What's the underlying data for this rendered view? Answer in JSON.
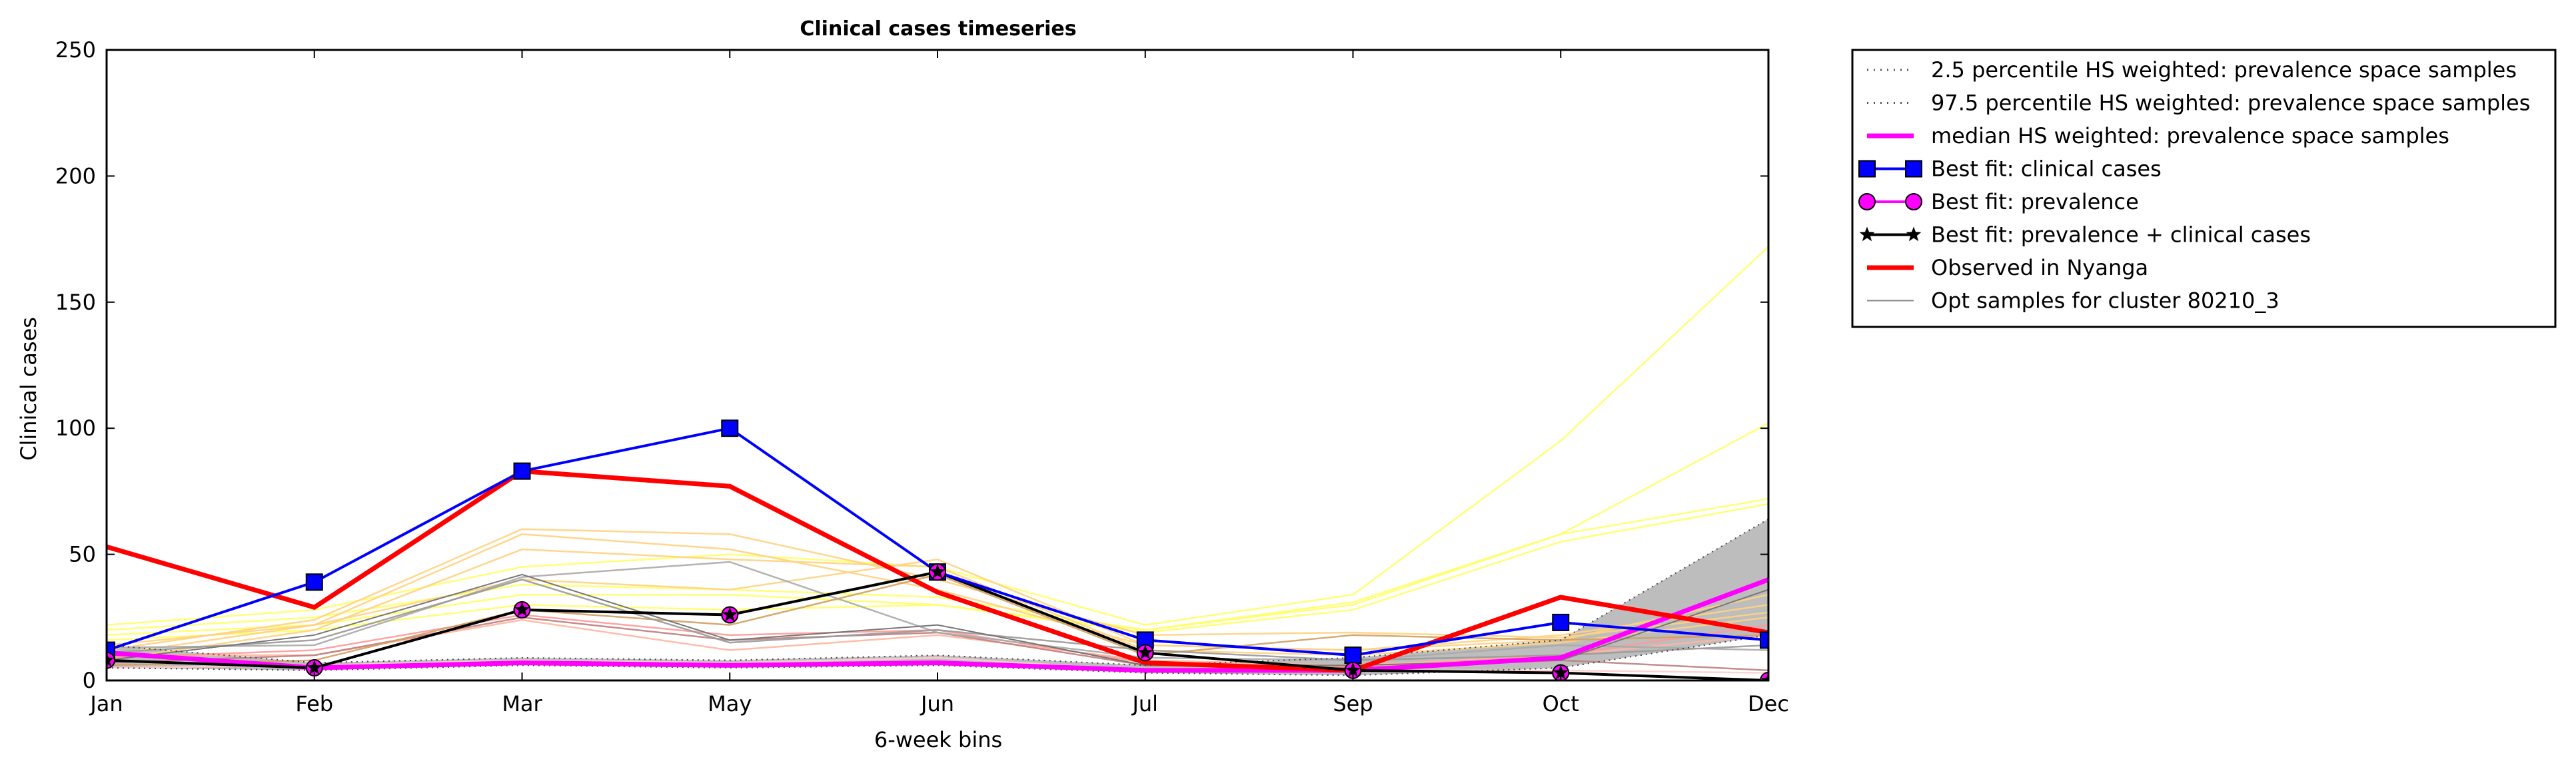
{
  "chart_data": {
    "type": "line",
    "title": "Clinical cases timeseries",
    "xlabel": "6-week bins",
    "ylabel": "Clinical cases",
    "categories": [
      "Jan",
      "Feb",
      "Mar",
      "May",
      "Jun",
      "Jul",
      "Sep",
      "Oct",
      "Dec"
    ],
    "ylim": [
      0,
      250
    ],
    "yticks": [
      "0",
      "50",
      "100",
      "150",
      "200",
      "250"
    ],
    "grid": false,
    "legend_position": "outside-right",
    "series": [
      {
        "name": "2.5 percentile HS weighted: prevalence space samples",
        "style": "dotted",
        "color": "#555555",
        "values": [
          5,
          4,
          6,
          5,
          6,
          3,
          2,
          5,
          18
        ]
      },
      {
        "name": "97.5 percentile HS weighted: prevalence space samples",
        "style": "dotted",
        "color": "#555555",
        "values": [
          14,
          7,
          9,
          8,
          10,
          6,
          9,
          16,
          64
        ]
      },
      {
        "name": "median HS weighted: prevalence space samples",
        "style": "solid",
        "color": "#ff00ff",
        "values": [
          11,
          5,
          7,
          6,
          7,
          4,
          4,
          9,
          40
        ]
      },
      {
        "name": "Best fit: clinical cases",
        "style": "solid",
        "marker": "square",
        "color": "#0000ff",
        "values": [
          12,
          39,
          83,
          100,
          43,
          16,
          10,
          23,
          16
        ]
      },
      {
        "name": "Best fit: prevalence",
        "style": "solid",
        "marker": "circle",
        "color": "#ff00ff",
        "values": [
          8,
          5,
          28,
          26,
          43,
          11,
          4,
          3,
          0
        ]
      },
      {
        "name": "Best fit: prevalence + clinical cases",
        "style": "solid",
        "marker": "star",
        "color": "#000000",
        "values": [
          8,
          5,
          28,
          26,
          43,
          11,
          4,
          3,
          0
        ]
      },
      {
        "name": "Observed in Nyanga",
        "style": "solid",
        "color": "#ff0000",
        "values": [
          53,
          29,
          83,
          77,
          35,
          7,
          4,
          33,
          19
        ]
      },
      {
        "name": "Opt samples for cluster 80210_3",
        "style": "solid",
        "color": "#888888",
        "values": [
          8,
          18,
          42,
          16,
          22,
          6,
          6,
          8,
          36
        ]
      }
    ],
    "background_samples": [
      {
        "color": "#ffff66",
        "values": [
          22,
          28,
          45,
          50,
          45,
          22,
          34,
          95,
          172
        ]
      },
      {
        "color": "#ffff66",
        "values": [
          20,
          25,
          38,
          36,
          33,
          20,
          31,
          58,
          102
        ]
      },
      {
        "color": "#ffff66",
        "values": [
          18,
          22,
          34,
          34,
          30,
          20,
          30,
          58,
          72
        ]
      },
      {
        "color": "#ffff66",
        "values": [
          16,
          20,
          30,
          28,
          30,
          19,
          28,
          55,
          70
        ]
      },
      {
        "color": "#ffd27f",
        "values": [
          12,
          24,
          60,
          58,
          40,
          18,
          19,
          17,
          27
        ]
      },
      {
        "color": "#ffd27f",
        "values": [
          10,
          22,
          58,
          52,
          36,
          14,
          12,
          18,
          30
        ]
      },
      {
        "color": "#ffd27f",
        "values": [
          8,
          20,
          52,
          48,
          45,
          12,
          10,
          15,
          25
        ]
      },
      {
        "color": "#ffd27f",
        "values": [
          14,
          22,
          40,
          36,
          48,
          14,
          12,
          16,
          34
        ]
      },
      {
        "color": "#ffb6a0",
        "values": [
          10,
          10,
          24,
          12,
          18,
          8,
          6,
          10,
          18
        ]
      },
      {
        "color": "#ff9999",
        "values": [
          9,
          12,
          26,
          18,
          20,
          7,
          5,
          10,
          22
        ]
      },
      {
        "color": "#c08080",
        "values": [
          7,
          10,
          25,
          16,
          19,
          6,
          5,
          8,
          4
        ]
      },
      {
        "color": "#d2a060",
        "values": [
          6,
          8,
          28,
          22,
          42,
          10,
          18,
          16,
          18
        ]
      },
      {
        "color": "#aaaaaa",
        "values": [
          13,
          14,
          41,
          47,
          19,
          9,
          8,
          14,
          12
        ]
      },
      {
        "color": "#999999",
        "values": [
          11,
          16,
          40,
          15,
          20,
          12,
          8,
          10,
          14
        ]
      },
      {
        "color": "#ffcccc",
        "values": [
          5,
          6,
          8,
          7,
          9,
          4,
          4,
          4,
          3
        ]
      }
    ]
  }
}
